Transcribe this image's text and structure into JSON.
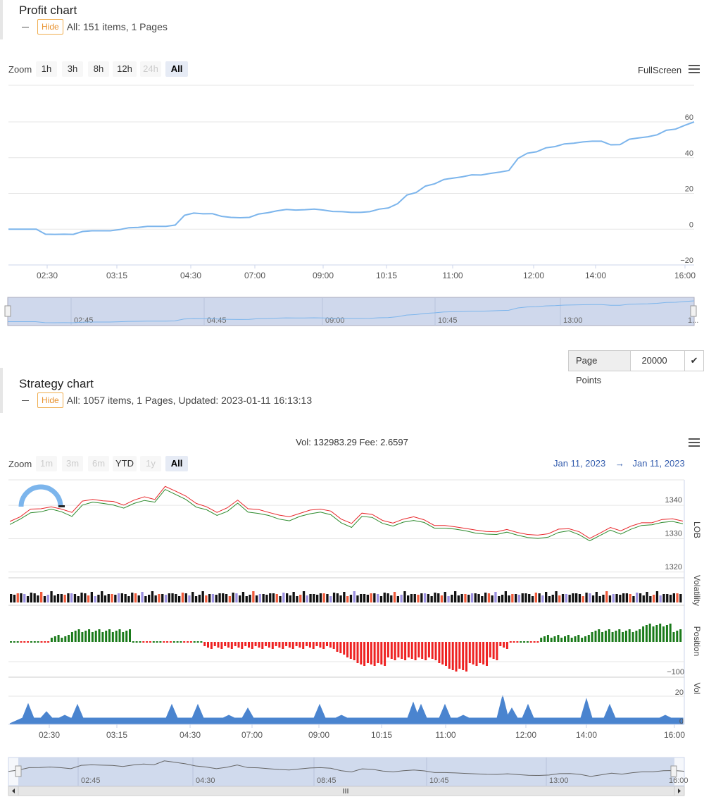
{
  "profit": {
    "title": "Profit chart",
    "hide_label": "Hide",
    "summary": "All: 151 items, 1 Pages",
    "zoom_label": "Zoom",
    "zoom_buttons": [
      "1h",
      "3h",
      "8h",
      "12h",
      "24h",
      "All"
    ],
    "zoom_disabled": [
      "24h"
    ],
    "zoom_selected": "All",
    "fullscreen_label": "FullScreen",
    "navigator_labels": [
      "02:45",
      "04:45",
      "09:00",
      "10:45",
      "13:00",
      "1..."
    ]
  },
  "page_points": {
    "label": "Page Points",
    "value": "20000",
    "confirm_icon": "check-icon"
  },
  "strategy": {
    "title": "Strategy chart",
    "hide_label": "Hide",
    "summary": "All: 1057 items, 1 Pages, Updated: 2023-01-11 16:13:13",
    "info": "Vol: 132983.29 Fee: 2.6597",
    "zoom_label": "Zoom",
    "zoom_buttons": [
      "1m",
      "3m",
      "6m",
      "YTD",
      "1y",
      "All"
    ],
    "zoom_disabled": [
      "1m",
      "3m",
      "6m",
      "1y"
    ],
    "zoom_selected": "All",
    "date_from": "Jan 11, 2023",
    "date_arrow": "→",
    "date_to": "Jan 11, 2023",
    "navigator_labels": [
      "02:45",
      "04:30",
      "08:45",
      "10:45",
      "13:00",
      "16:00"
    ],
    "scroll_left_icon": "arrow-left-icon",
    "scroll_right_icon": "arrow-right-icon"
  },
  "colors": {
    "profit_line": "#7cb5ec",
    "ask": "#e8262a",
    "bid": "#2c8a2c",
    "position_pos": "#1a7a1a",
    "position_neg": "#ee2222",
    "vol_area": "#4a84cf",
    "navigator_bg": "#ccd6eb",
    "loading_arc": "#7cb5ec"
  },
  "chart_data": [
    {
      "type": "line",
      "name": "profit",
      "title": "",
      "x_tick_labels": [
        "02:30",
        "03:15",
        "04:30",
        "07:00",
        "09:00",
        "10:15",
        "11:00",
        "12:00",
        "14:00",
        "16:00"
      ],
      "y_tick_labels": [
        "60",
        "40",
        "20",
        "0",
        "-20"
      ],
      "ylim": [
        -20,
        60
      ],
      "grid": true,
      "values": [
        0.0,
        0.0,
        0.0,
        0.0,
        -2.8,
        -2.9,
        -2.8,
        -2.9,
        -1.3,
        -0.9,
        -0.9,
        -0.9,
        -0.2,
        0.8,
        1.0,
        1.6,
        1.6,
        1.6,
        2.3,
        7.8,
        9.0,
        8.6,
        8.7,
        7.2,
        6.6,
        6.4,
        6.6,
        8.5,
        9.2,
        10.3,
        11.0,
        10.7,
        10.9,
        11.2,
        10.7,
        9.9,
        9.8,
        9.4,
        9.4,
        9.8,
        11.2,
        11.9,
        14.3,
        19.1,
        20.5,
        24.1,
        25.4,
        27.8,
        28.6,
        29.3,
        30.4,
        30.3,
        31.2,
        31.9,
        32.8,
        39.6,
        42.5,
        43.3,
        45.5,
        46.2,
        47.7,
        48.1,
        48.8,
        49.2,
        49.2,
        47.2,
        47.3,
        50.3,
        51.0,
        51.7,
        52.8,
        55.3,
        56.0,
        58.1,
        60.0
      ]
    },
    {
      "type": "line",
      "name": "LOB",
      "axis_title": "LOB",
      "y_tick_labels": [
        "1340",
        "1330",
        "1320"
      ],
      "ylim": [
        1317,
        1347
      ],
      "series": [
        {
          "name": "",
          "values": [
            1333.0,
            1334.6,
            1336.5,
            1336.8,
            1337.6,
            1336.8,
            1335.4,
            1338.8,
            1339.7,
            1339.3,
            1338.8,
            1337.9,
            1339.3,
            1340.2,
            1339.7,
            1343.5,
            1342.0,
            1340.5,
            1338.2,
            1337.4,
            1335.7,
            1336.9,
            1339.4,
            1336.7,
            1336.3,
            1335.7,
            1334.6,
            1334.1,
            1335.4,
            1336.2,
            1336.7,
            1335.9,
            1333.5,
            1332.1,
            1335.4,
            1335.1,
            1333.3,
            1332.5,
            1333.7,
            1334.2,
            1333.6,
            1331.9,
            1331.9,
            1331.6,
            1331.1,
            1330.4,
            1330.1,
            1330.0,
            1330.7,
            1329.8,
            1329.1,
            1328.8,
            1329.2,
            1330.6,
            1331.1,
            1329.9,
            1328.1,
            1329.7,
            1331.3,
            1330.1,
            1331.6,
            1332.7,
            1332.9,
            1333.6,
            1333.9,
            1333.2
          ]
        },
        {
          "name": "",
          "values": [
            1333.9,
            1335.3,
            1337.6,
            1337.7,
            1338.3,
            1337.6,
            1336.6,
            1340.0,
            1340.5,
            1340.1,
            1339.9,
            1338.8,
            1340.3,
            1341.3,
            1340.5,
            1344.4,
            1343.0,
            1341.5,
            1339.3,
            1338.3,
            1336.6,
            1338.0,
            1340.3,
            1337.7,
            1337.5,
            1336.6,
            1335.8,
            1335.3,
            1336.3,
            1337.3,
            1337.6,
            1337.0,
            1334.6,
            1333.3,
            1336.4,
            1336.0,
            1334.2,
            1333.4,
            1334.6,
            1335.3,
            1334.4,
            1332.7,
            1332.7,
            1332.3,
            1331.8,
            1331.3,
            1330.9,
            1330.8,
            1331.5,
            1330.6,
            1330.0,
            1329.8,
            1330.2,
            1331.6,
            1331.7,
            1330.8,
            1328.8,
            1330.4,
            1332.1,
            1331.1,
            1332.5,
            1333.5,
            1333.5,
            1334.5,
            1334.7,
            1334.0
          ]
        }
      ]
    },
    {
      "type": "bar",
      "name": "Volatility",
      "axis_title": "Volatility"
    },
    {
      "type": "bar",
      "name": "Position",
      "axis_title": "Position",
      "y_tick_labels": [
        "-100"
      ],
      "values": [
        0,
        0,
        0,
        0,
        1,
        1,
        2,
        2,
        2,
        2,
        2,
        2,
        0,
        0,
        0,
        0,
        0,
        0,
        0,
        -1,
        -1,
        -1,
        -1,
        -1,
        -1,
        -1,
        -1,
        -1,
        -1,
        -1,
        -1,
        -1,
        -2,
        -3,
        -4,
        -4,
        -4,
        -3,
        -3,
        -3,
        -3,
        -3,
        -4,
        -5,
        -5,
        -4,
        -4,
        -3,
        -1,
        0,
        0,
        0,
        1,
        1,
        1,
        1,
        1,
        2,
        2,
        2,
        2,
        2,
        3,
        3,
        3,
        2
      ]
    },
    {
      "type": "area",
      "name": "Vol",
      "axis_title": "Vol",
      "y_tick_labels": [
        "20",
        "0"
      ],
      "ylim": [
        0,
        25
      ]
    }
  ]
}
